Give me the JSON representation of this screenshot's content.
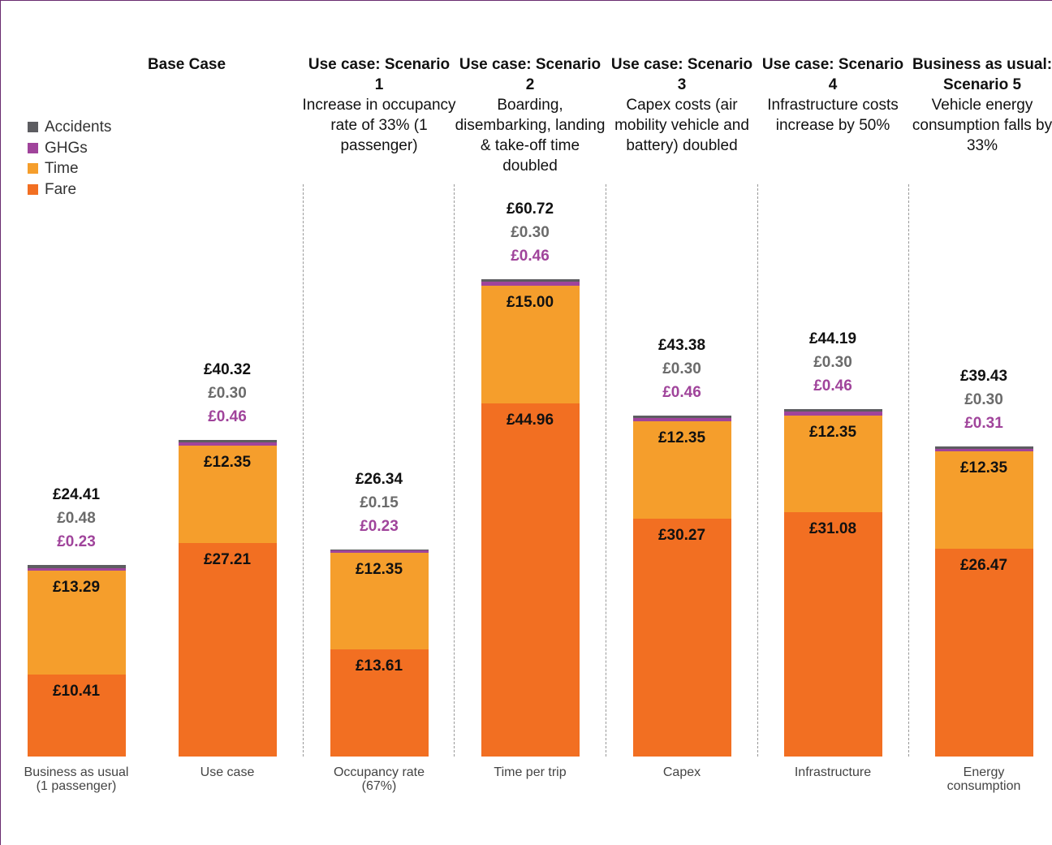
{
  "chart_data": {
    "type": "stacked_bar",
    "headers": [
      {
        "title": "Base Case"
      },
      {
        "title": "Use case: Scenario 1",
        "text": "Increase in occupancy rate of 33% (1 passenger)"
      },
      {
        "title": "Use case: Scenario 2",
        "text": "Boarding, disembarking, landing & take-off time doubled"
      },
      {
        "title": "Use case: Scenario 3",
        "text": "Capex costs (air mobility vehicle and battery) doubled"
      },
      {
        "title": "Use case: Scenario 4",
        "text": "Infrastructure costs increase by 50%"
      },
      {
        "title": "Business as usual: Scenario 5",
        "text": "Vehicle energy consumption falls by 33%"
      }
    ],
    "categories": [
      "Business as usual (1 passenger)",
      "Use case",
      "Occupancy rate (67%)",
      "Time per trip",
      "Capex",
      "Infrastructure",
      "Energy consumption"
    ],
    "series": [
      {
        "name": "Accidents",
        "color": "#5d5d61",
        "label_color": "#6b6b6b",
        "values": [
          0.48,
          0.3,
          0.15,
          0.3,
          0.3,
          0.3,
          0.3
        ],
        "value_labels": [
          "£0.48",
          "£0.30",
          "£0.15",
          "£0.30",
          "£0.30",
          "£0.30",
          "£0.30"
        ]
      },
      {
        "name": "GHGs",
        "color": "#a0449b",
        "label_color": "#a0449b",
        "values": [
          0.23,
          0.46,
          0.23,
          0.46,
          0.46,
          0.46,
          0.31
        ],
        "value_labels": [
          "£0.23",
          "£0.46",
          "£0.23",
          "£0.46",
          "£0.46",
          "£0.46",
          "£0.31"
        ]
      },
      {
        "name": "Time",
        "color": "#f59e2c",
        "values": [
          13.29,
          12.35,
          12.35,
          15.0,
          12.35,
          12.35,
          12.35
        ],
        "value_labels": [
          "£13.29",
          "£12.35",
          "£12.35",
          "£15.00",
          "£12.35",
          "£12.35",
          "£12.35"
        ]
      },
      {
        "name": "Fare",
        "color": "#f26f22",
        "values": [
          10.41,
          27.21,
          13.61,
          44.96,
          30.27,
          31.08,
          26.47
        ],
        "value_labels": [
          "£10.41",
          "£27.21",
          "£13.61",
          "£44.96",
          "£30.27",
          "£31.08",
          "£26.47"
        ]
      }
    ],
    "totals": {
      "values": [
        24.41,
        40.32,
        26.34,
        60.72,
        43.38,
        44.19,
        39.43
      ],
      "value_labels": [
        "£24.41",
        "£40.32",
        "£26.34",
        "£60.72",
        "£43.38",
        "£44.19",
        "£39.43"
      ]
    }
  }
}
